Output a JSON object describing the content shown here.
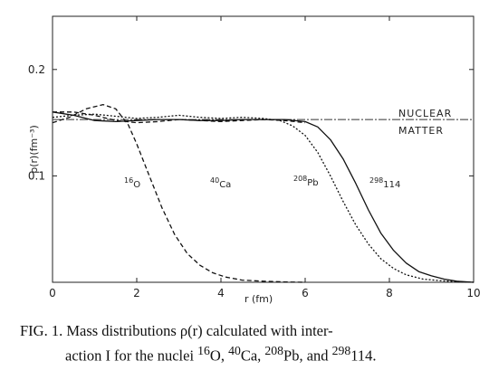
{
  "chart_data": {
    "type": "line",
    "xlabel": "r (fm)",
    "ylabel": "ρ(r)(fm⁻³)",
    "xlim": [
      0,
      10
    ],
    "ylim": [
      0,
      0.25
    ],
    "x_ticks": [
      "0",
      "2",
      "4",
      "6",
      "8",
      "10"
    ],
    "y_ticks": [
      "0.1",
      "0.2"
    ],
    "grid": false,
    "reference_line": {
      "y": 0.153,
      "label_top": "NUCLEAR",
      "label_bottom": "MATTER"
    },
    "series": [
      {
        "name": "16O",
        "label_main": "16",
        "label_sub": "O",
        "style": "dashed",
        "x": [
          0,
          0.4,
          0.8,
          1.2,
          1.5,
          1.8,
          2.0,
          2.3,
          2.6,
          2.9,
          3.2,
          3.5,
          3.8,
          4.1,
          4.5,
          5.0,
          5.5,
          6.0
        ],
        "y": [
          0.15,
          0.155,
          0.163,
          0.167,
          0.163,
          0.148,
          0.13,
          0.1,
          0.07,
          0.045,
          0.027,
          0.016,
          0.009,
          0.005,
          0.002,
          0.001,
          0.0003,
          0
        ]
      },
      {
        "name": "40Ca",
        "label_main": "40",
        "label_sub": "Ca",
        "style": "dashed",
        "x": [
          0,
          0.5,
          1.0,
          1.5,
          2.0,
          2.5,
          3.0,
          3.5,
          4.0,
          4.5,
          5.0,
          5.5,
          6.0
        ],
        "y": [
          0.16,
          0.16,
          0.157,
          0.152,
          0.15,
          0.151,
          0.153,
          0.152,
          0.151,
          0.152,
          0.153,
          0.152,
          0.15
        ]
      },
      {
        "name": "208Pb",
        "label_main": "208",
        "label_sub": "Pb",
        "style": "dotted",
        "x": [
          0,
          0.5,
          1.0,
          1.5,
          2.0,
          2.5,
          3.0,
          3.5,
          4.0,
          4.5,
          5.0,
          5.4,
          5.7,
          6.0,
          6.3,
          6.6,
          6.9,
          7.2,
          7.5,
          7.8,
          8.1,
          8.4,
          8.8,
          9.2,
          9.6,
          10.0
        ],
        "y": [
          0.155,
          0.157,
          0.158,
          0.156,
          0.154,
          0.155,
          0.157,
          0.155,
          0.154,
          0.155,
          0.154,
          0.152,
          0.147,
          0.138,
          0.122,
          0.1,
          0.076,
          0.054,
          0.036,
          0.022,
          0.013,
          0.007,
          0.003,
          0.0015,
          0.0005,
          0
        ]
      },
      {
        "name": "298114",
        "label_main": "298",
        "label_sub": "114",
        "style": "solid",
        "x": [
          0,
          0.5,
          1.0,
          1.5,
          2.0,
          2.5,
          3.0,
          3.5,
          4.0,
          4.5,
          5.0,
          5.5,
          6.0,
          6.3,
          6.6,
          6.9,
          7.2,
          7.5,
          7.8,
          8.1,
          8.4,
          8.7,
          9.0,
          9.3,
          9.6,
          10.0
        ],
        "y": [
          0.16,
          0.157,
          0.152,
          0.151,
          0.152,
          0.153,
          0.153,
          0.152,
          0.152,
          0.153,
          0.153,
          0.153,
          0.151,
          0.146,
          0.134,
          0.116,
          0.093,
          0.068,
          0.046,
          0.03,
          0.018,
          0.01,
          0.006,
          0.003,
          0.001,
          0
        ]
      }
    ]
  },
  "caption": {
    "line1": "FIG. 1.  Mass distributions ρ(r) calculated with inter-",
    "line2_pre": "action I for the nuclei ",
    "n1": "16",
    "e1": "O, ",
    "n2": "40",
    "e2": "Ca, ",
    "n3": "208",
    "e3": "Pb, and ",
    "n4": "298",
    "e4": "114."
  }
}
